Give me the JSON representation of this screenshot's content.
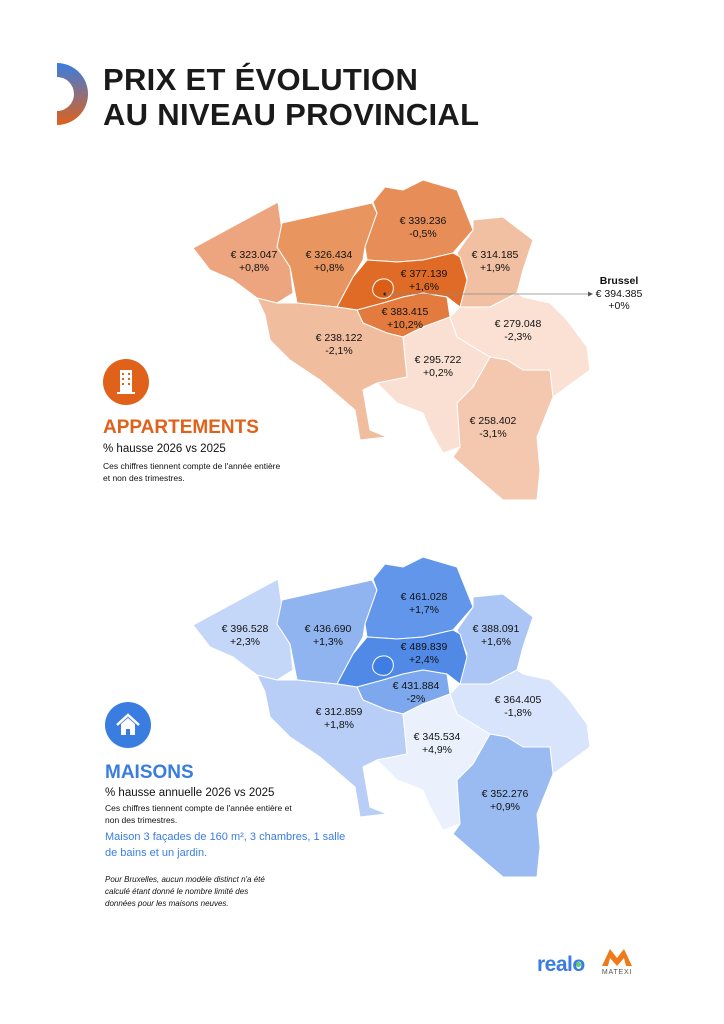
{
  "header": {
    "title_line1": "PRIX ET ÉVOLUTION",
    "title_line2": "AU NIVEAU PROVINCIAL"
  },
  "colors": {
    "orange": "#e0611a",
    "blue": "#3a7de0",
    "map_border": "#ffffff"
  },
  "apartments": {
    "icon": "apartment-building-icon",
    "title": "APPARTEMENTS",
    "subtitle": "% hausse 2026 vs 2025",
    "note_line1": "Ces chiffres tiennent compte de l'année entière",
    "note_line2": "et non des trimestres.",
    "brussels_callout": {
      "title": "Brussel",
      "price": "€ 394.385",
      "change": "+0%"
    },
    "regions": {
      "wvl": {
        "price": "€ 323.047",
        "change": "+0,8%",
        "color": "#eca57e"
      },
      "ovl": {
        "price": "€ 326.434",
        "change": "+0,8%",
        "color": "#e8955f"
      },
      "ant": {
        "price": "€ 339.236",
        "change": "-0,5%",
        "color": "#e78e58"
      },
      "lim": {
        "price": "€ 314.185",
        "change": "+1,9%",
        "color": "#f1c0a2"
      },
      "vbr": {
        "price": "€ 377.139",
        "change": "+1,6%",
        "color": "#e06b27"
      },
      "wbr": {
        "price": "€ 383.415",
        "change": "+10,2%",
        "color": "#e37b3e"
      },
      "hai": {
        "price": "€ 238.122",
        "change": "-2,1%",
        "color": "#f0bd9f"
      },
      "nam": {
        "price": "€  295.722",
        "change": "+0,2%",
        "color": "#f9e0d2"
      },
      "lie": {
        "price": "€ 279.048",
        "change": "-2,3%",
        "color": "#fae1d4"
      },
      "lux": {
        "price": "€ 258.402",
        "change": "-3,1%",
        "color": "#f3c8ae"
      },
      "bru": {
        "price": "",
        "change": "",
        "color": "#db5e16"
      }
    }
  },
  "houses": {
    "icon": "house-icon",
    "title": "MAISONS",
    "subtitle": "% hausse annuelle 2026 vs 2025",
    "note_line1": "Ces chiffres tiennent compte de l'année entière et",
    "note_line2": "non des trimestres.",
    "model_line1": "Maison 3 façades de 160 m², 3 chambres, 1 salle",
    "model_line2": "de bains et un jardin.",
    "brussels_note_line1": "Pour Bruxelles, aucun modèle distinct n'a été",
    "brussels_note_line2": "calculé étant donné le nombre limité des",
    "brussels_note_line3": "données pour les maisons neuves.",
    "regions": {
      "wvl": {
        "price": "€ 396.528",
        "change": "+2,3%",
        "color": "#c4d7f8"
      },
      "ovl": {
        "price": "€ 436.690",
        "change": "+1,3%",
        "color": "#8fb4f0"
      },
      "ant": {
        "price": "€ 461.028",
        "change": "+1,7%",
        "color": "#6196ea"
      },
      "lim": {
        "price": "€ 388.091",
        "change": "+1,6%",
        "color": "#abc6f4"
      },
      "vbr": {
        "price": "€ 489.839",
        "change": "+2,4%",
        "color": "#5089e6"
      },
      "wbr": {
        "price": "€ 431.884",
        "change": "-2%",
        "color": "#7ea8ee"
      },
      "hai": {
        "price": "€ 312.859",
        "change": "+1,8%",
        "color": "#b8cef6"
      },
      "nam": {
        "price": "€ 345.534",
        "change": "+4,9%",
        "color": "#eaf1fd"
      },
      "lie": {
        "price": "€ 364.405",
        "change": "-1,8%",
        "color": "#d7e4fb"
      },
      "lux": {
        "price": "€ 352.276",
        "change": "+0,9%",
        "color": "#99bbf2"
      },
      "bru": {
        "price": "",
        "change": "",
        "color": "#3e7de4"
      }
    }
  },
  "footer": {
    "logo_realo": "realo",
    "logo_matexi": "MATEXI"
  }
}
